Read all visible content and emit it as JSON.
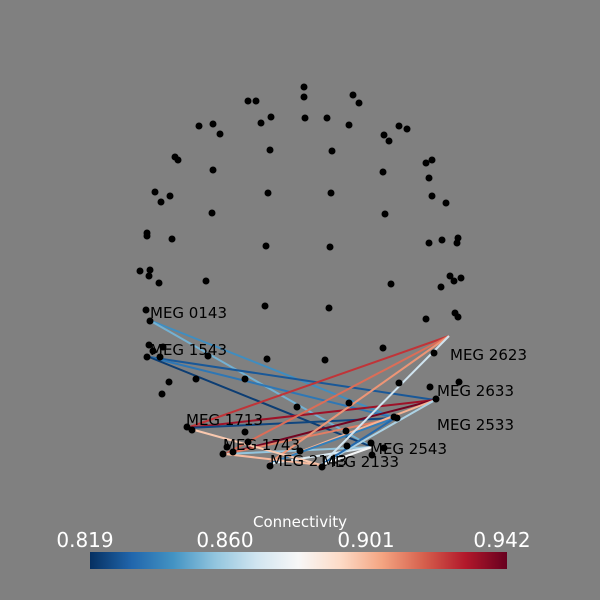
{
  "labels": {
    "MEG 0143": "MEG 0143",
    "MEG 1543": "MEG 1543",
    "MEG 1713": "MEG 1713",
    "MEG 1743": "MEG 1743",
    "MEG 2143": "MEG 2143",
    "MEG 2133": "MEG 2133",
    "MEG 2623": "MEG 2623",
    "MEG 2633": "MEG 2633",
    "MEG 2533": "MEG 2533",
    "MEG 2543": "MEG 2543"
  },
  "colorbar": {
    "title": "Connectivity",
    "ticks": [
      "0.819",
      "0.860",
      "0.901",
      "0.942"
    ],
    "min": 0.819,
    "max": 0.942,
    "colormap": [
      "#053061",
      "#2166ac",
      "#4393c3",
      "#92c5de",
      "#d1e5f0",
      "#f7f7f7",
      "#fddbc7",
      "#f4a582",
      "#d6604d",
      "#b2182b",
      "#67001f"
    ]
  },
  "connections": [
    {
      "from": "MEG 0143",
      "to": "MEG 2533",
      "value": 0.842
    },
    {
      "from": "MEG 0143",
      "to": "MEG 2543",
      "value": 0.851
    },
    {
      "from": "MEG 1543",
      "to": "MEG 2633",
      "value": 0.828
    },
    {
      "from": "MEG 1543",
      "to": "MEG 2533",
      "value": 0.836
    },
    {
      "from": "MEG 1543",
      "to": "MEG 2543",
      "value": 0.822
    },
    {
      "from": "MEG 1713",
      "to": "MEG 2623",
      "value": 0.925
    },
    {
      "from": "MEG 1713",
      "to": "MEG 2633",
      "value": 0.933
    },
    {
      "from": "MEG 1713",
      "to": "MEG 2533",
      "value": 0.824
    },
    {
      "from": "MEG 1743",
      "to": "MEG 2623",
      "value": 0.915
    },
    {
      "from": "MEG 1743",
      "to": "MEG 2633",
      "value": 0.94
    },
    {
      "from": "MEG 1743",
      "to": "MEG 2533",
      "value": 0.912
    },
    {
      "from": "MEG 1743",
      "to": "MEG 2543",
      "value": 0.856
    },
    {
      "from": "MEG 2143",
      "to": "MEG 2623",
      "value": 0.908
    },
    {
      "from": "MEG 2143",
      "to": "MEG 2633",
      "value": 0.902
    },
    {
      "from": "MEG 2143",
      "to": "MEG 2533",
      "value": 0.838
    },
    {
      "from": "MEG 2143",
      "to": "MEG 2543",
      "value": 0.871
    },
    {
      "from": "MEG 2133",
      "to": "MEG 2623",
      "value": 0.868
    },
    {
      "from": "MEG 2133",
      "to": "MEG 2633",
      "value": 0.861
    },
    {
      "from": "MEG 2133",
      "to": "MEG 2533",
      "value": 0.832
    },
    {
      "from": "MEG 2133",
      "to": "MEG 2543",
      "value": 0.88
    },
    {
      "from": "MEG 1713",
      "to": "MEG 2133",
      "value": 0.897
    },
    {
      "from": "MEG 1743",
      "to": "MEG 2133",
      "value": 0.9
    }
  ]
}
